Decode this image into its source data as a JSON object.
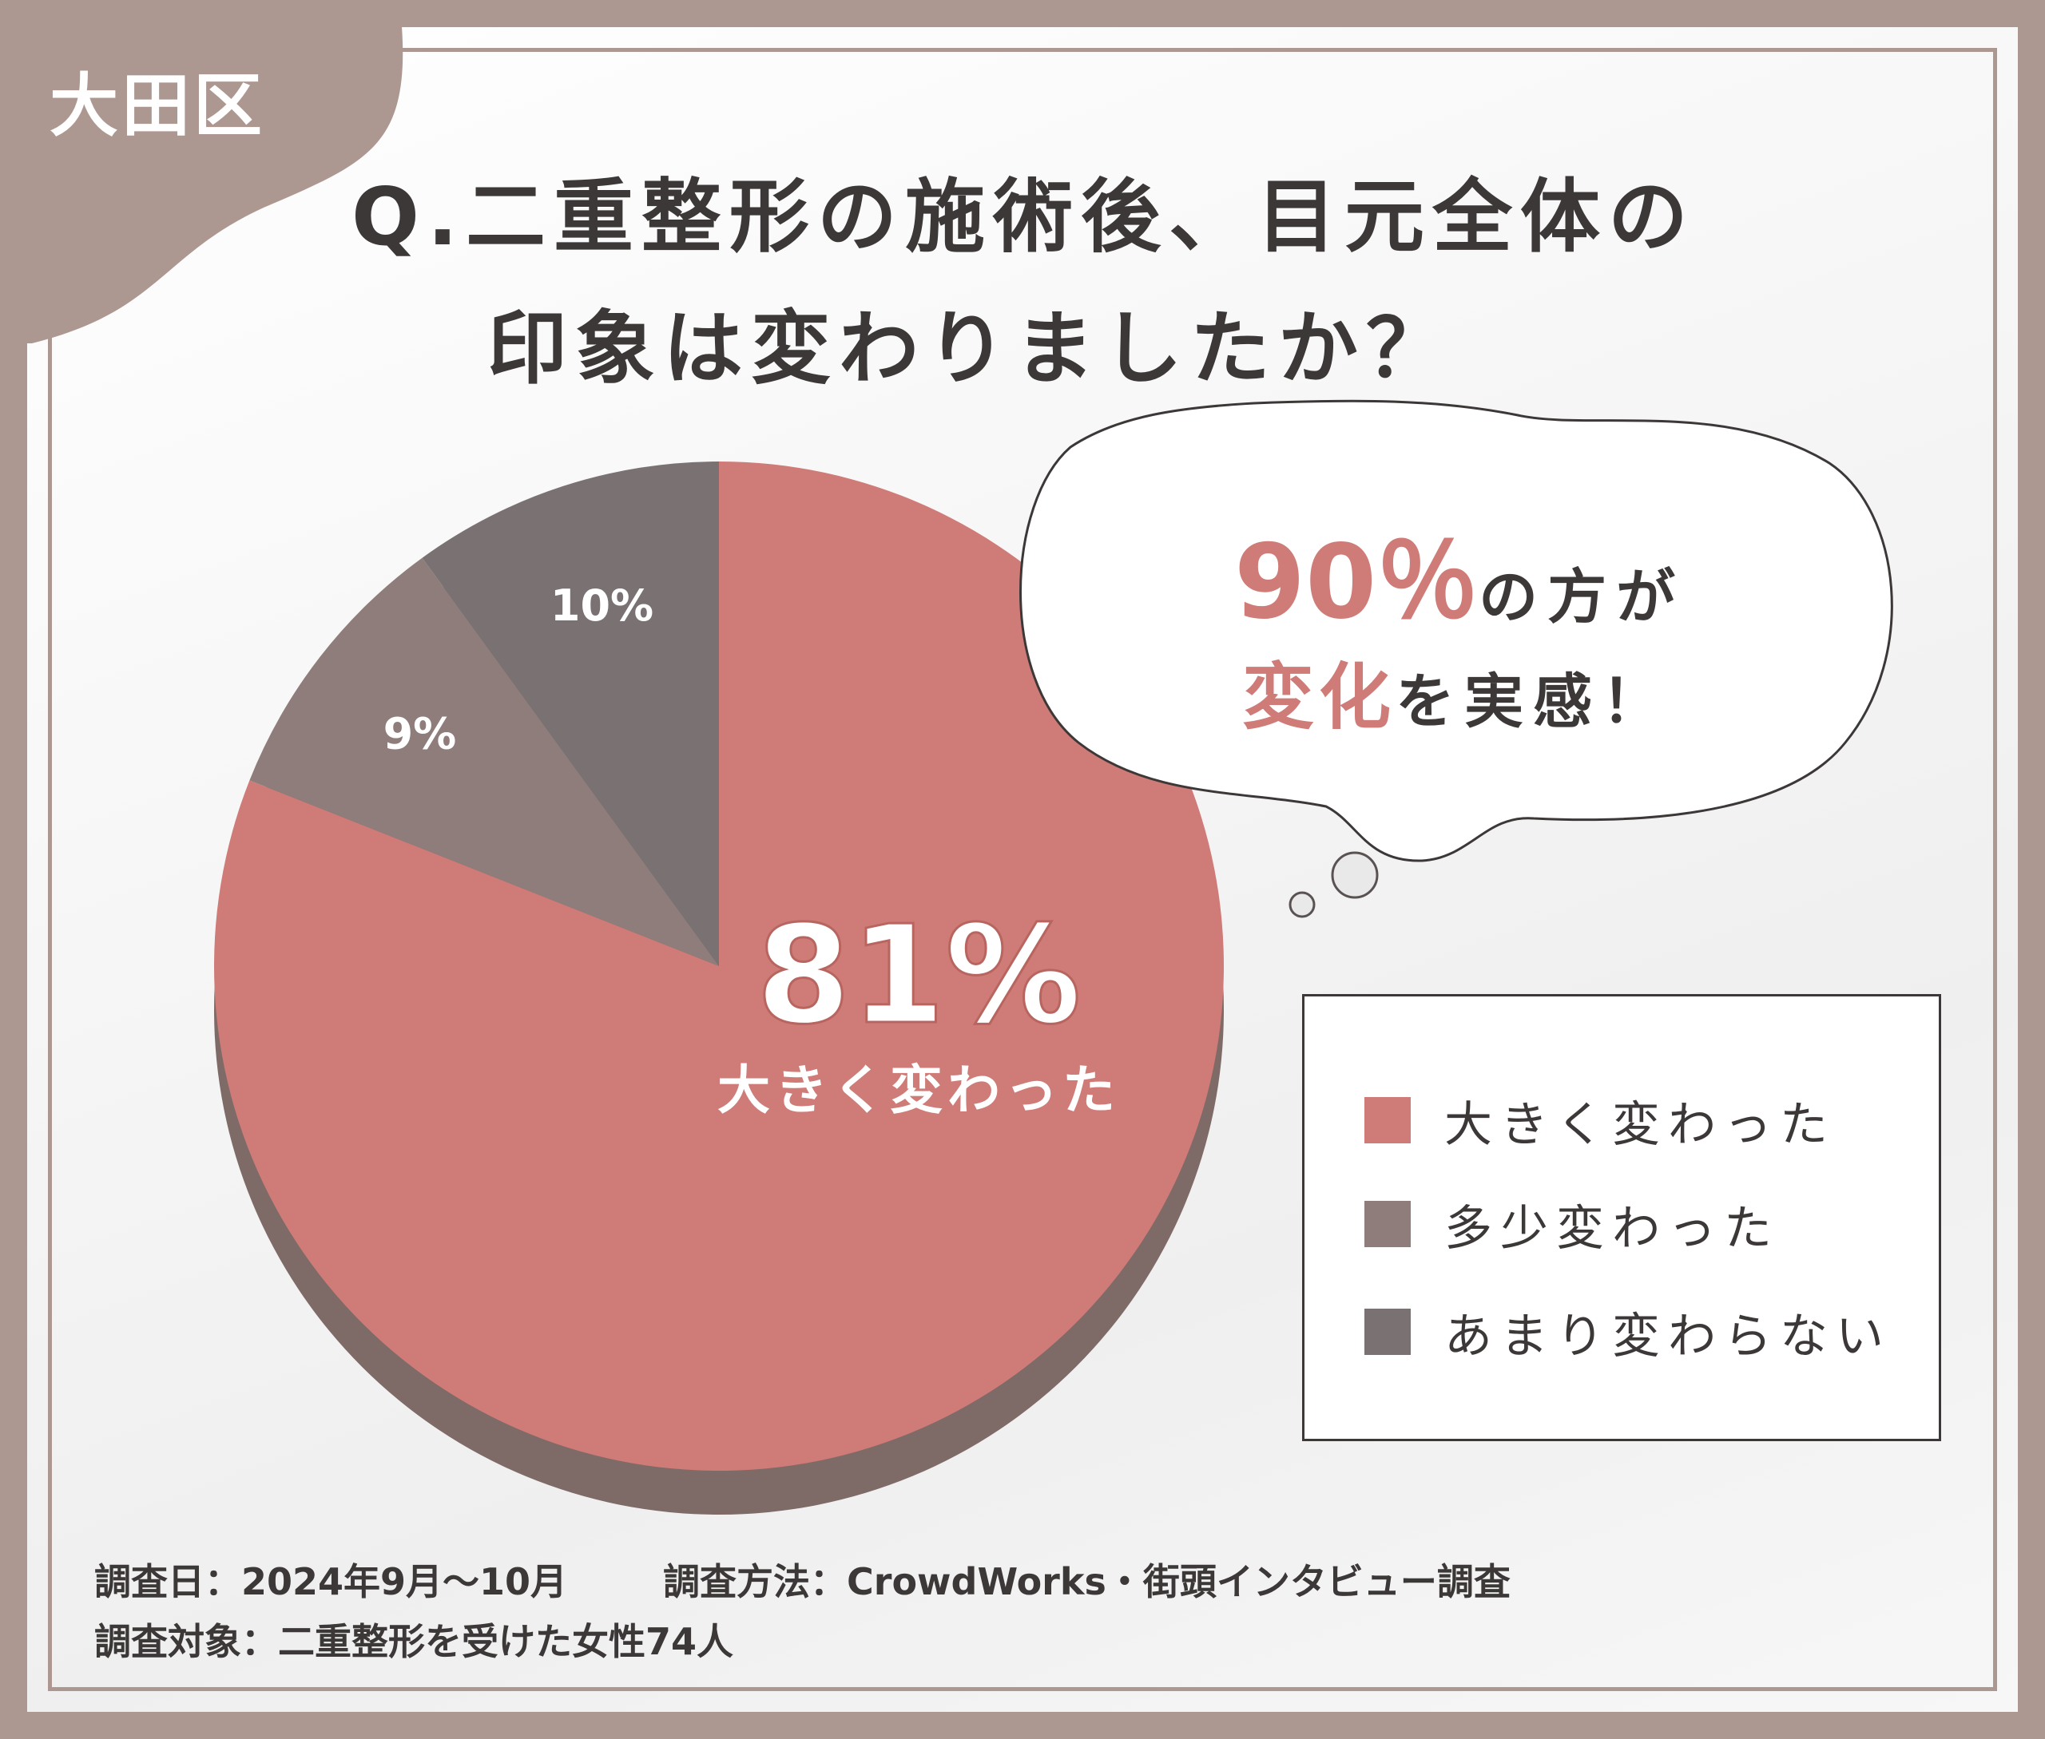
{
  "region_label": "大田区",
  "title": {
    "line1": "Q.二重整形の施術後、目元全体の",
    "line2": "印象は変わりましたか？"
  },
  "callout": {
    "pct": "90％",
    "line1_tail": "の方が",
    "emph": "変化",
    "line2_tail": "を実感！"
  },
  "center_label": {
    "value": "81%",
    "caption": "大きく変わった"
  },
  "colors": {
    "frame": "#ad9891",
    "large": "#cf7b77",
    "some": "#8e7d7b",
    "none": "#7a7272",
    "text": "#3c3838",
    "highlight": "#cf7b77"
  },
  "chart_data": {
    "type": "pie",
    "title": "Q.二重整形の施術後、目元全体の印象は変わりましたか？",
    "categories": [
      "大きく変わった",
      "多少変わった",
      "あまり変わらない"
    ],
    "values": [
      81,
      9,
      10
    ],
    "labels": [
      "81%",
      "9%",
      "10%"
    ],
    "colors": [
      "#cf7b77",
      "#8e7d7b",
      "#7a7272"
    ],
    "legend_position": "bottom-right"
  },
  "legend": [
    {
      "label": "大きく変わった",
      "color": "#cf7b77"
    },
    {
      "label": "多少変わった",
      "color": "#8e7d7b"
    },
    {
      "label": "あまり変わらない",
      "color": "#7a7272"
    }
  ],
  "footer": {
    "date": "調査日：2024年9月～10月",
    "method": "調査方法：CrowdWorks・街頭インタビュー調査",
    "target": "調査対象：二重整形を受けた女性74人"
  }
}
